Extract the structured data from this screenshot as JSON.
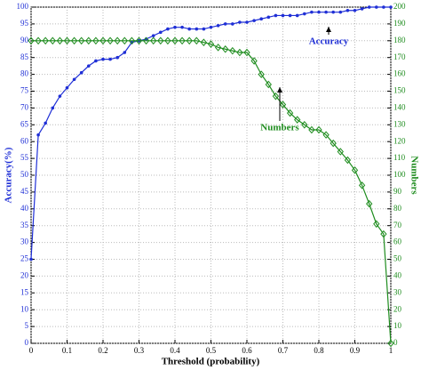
{
  "chart_data": {
    "type": "line",
    "xlabel": "Threshold (probability)",
    "ylabel": "Accuracy(%)",
    "y2label": "Numbers",
    "x": [
      0,
      0.02,
      0.04,
      0.06,
      0.08,
      0.1,
      0.12,
      0.14,
      0.16,
      0.18,
      0.2,
      0.22,
      0.24,
      0.26,
      0.28,
      0.3,
      0.32,
      0.34,
      0.36,
      0.38,
      0.4,
      0.42,
      0.44,
      0.46,
      0.48,
      0.5,
      0.52,
      0.54,
      0.56,
      0.58,
      0.6,
      0.62,
      0.64,
      0.66,
      0.68,
      0.7,
      0.72,
      0.74,
      0.76,
      0.78,
      0.8,
      0.82,
      0.84,
      0.86,
      0.88,
      0.9,
      0.92,
      0.94,
      0.96,
      0.98,
      1
    ],
    "series": [
      {
        "name": "Accuracy",
        "color": "#1f2fd6",
        "axis": "y",
        "values": [
          25,
          62,
          65.5,
          70,
          73.5,
          76,
          78.5,
          80.5,
          82.5,
          84,
          84.5,
          84.5,
          85,
          86.5,
          89.5,
          90,
          90.5,
          91.5,
          92.5,
          93.5,
          94,
          94,
          93.5,
          93.5,
          93.5,
          94,
          94.5,
          95,
          95,
          95.5,
          95.5,
          96,
          96.5,
          97,
          97.5,
          97.5,
          97.5,
          97.5,
          98,
          98.5,
          98.5,
          98.5,
          98.5,
          98.5,
          99,
          99,
          99.5,
          100,
          100,
          100,
          100
        ]
      },
      {
        "name": "Numbers",
        "color": "#1e8c1e",
        "axis": "y2",
        "values": [
          180,
          180,
          180,
          180,
          180,
          180,
          180,
          180,
          180,
          180,
          180,
          180,
          180,
          180,
          180,
          180,
          180,
          180,
          180,
          180,
          180,
          180,
          180,
          180,
          179,
          178,
          176,
          175,
          174,
          173,
          173,
          168,
          160,
          154,
          147,
          142,
          137,
          133,
          130,
          127,
          127,
          124,
          119,
          114,
          109,
          103,
          94,
          83,
          71,
          65,
          0
        ]
      }
    ],
    "xlim": [
      0,
      1
    ],
    "xticks": [
      0,
      0.1,
      0.2,
      0.3,
      0.4,
      0.5,
      0.6,
      0.7,
      0.8,
      0.9,
      1
    ],
    "ylim": [
      0,
      100
    ],
    "yticks": [
      0,
      5,
      10,
      15,
      20,
      25,
      30,
      35,
      40,
      45,
      50,
      55,
      60,
      65,
      70,
      75,
      80,
      85,
      90,
      95,
      100
    ],
    "y2lim": [
      0,
      200
    ],
    "y2ticks": [
      0,
      10,
      20,
      30,
      40,
      50,
      60,
      70,
      80,
      90,
      100,
      110,
      120,
      130,
      140,
      150,
      160,
      170,
      180,
      190,
      200
    ],
    "grid": true
  }
}
